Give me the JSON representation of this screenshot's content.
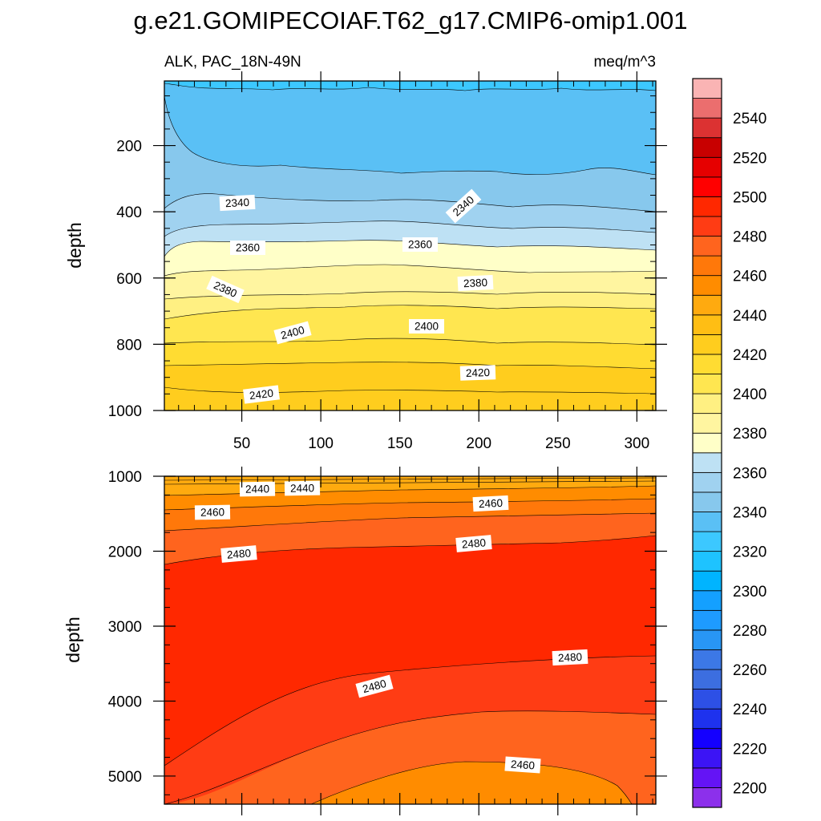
{
  "chart_data": {
    "type": "contour",
    "title": "g.e21.GOMIPECOIAF.T62_g17.CMIP6-omip1.001",
    "variable_label": "ALK, PAC_18N-49N",
    "units": "meq/m^3",
    "colorbar": {
      "levels": [
        2200,
        2210,
        2220,
        2230,
        2240,
        2250,
        2260,
        2270,
        2280,
        2290,
        2300,
        2310,
        2320,
        2330,
        2340,
        2350,
        2360,
        2370,
        2380,
        2390,
        2400,
        2410,
        2420,
        2430,
        2440,
        2450,
        2460,
        2470,
        2480,
        2490,
        2500,
        2510,
        2520,
        2530,
        2540,
        2550
      ],
      "tick_labels": [
        "2200",
        "2220",
        "2240",
        "2260",
        "2280",
        "2300",
        "2320",
        "2340",
        "2360",
        "2380",
        "2400",
        "2420",
        "2440",
        "2460",
        "2480",
        "2500",
        "2520",
        "2540"
      ],
      "colors": [
        "#8c30eb",
        "#6414f5",
        "#3c14f5",
        "#1400ff",
        "#1e32ee",
        "#2d50e6",
        "#3c6ee0",
        "#3c78e6",
        "#2896f5",
        "#1e9bff",
        "#14a0ff",
        "#00b4ff",
        "#1ec3ff",
        "#3cc8ff",
        "#5ac0f5",
        "#87c8ed",
        "#a0d2f0",
        "#bee1f4",
        "#ffffc8",
        "#fff5a0",
        "#fff082",
        "#ffe650",
        "#ffdc32",
        "#ffcd1e",
        "#ffbe14",
        "#ffaa0f",
        "#ff8c00",
        "#ff780a",
        "#ff641e",
        "#ff3c14",
        "#ff2800",
        "#ff0000",
        "#e60000",
        "#c80000",
        "#dc3232",
        "#eb6e6e",
        "#fab4b4"
      ]
    },
    "panels": [
      {
        "name": "upper",
        "x_ticks": [
          50,
          100,
          150,
          200,
          250,
          300
        ],
        "xlim": [
          1,
          312
        ],
        "ylabel": "depth",
        "y_ticks": [
          200,
          400,
          600,
          800,
          1000
        ],
        "ylim": [
          1000,
          5
        ],
        "contour_labels": [
          "2340",
          "2340",
          "2360",
          "2360",
          "2380",
          "2380",
          "2400",
          "2400",
          "2420",
          "2420"
        ]
      },
      {
        "name": "lower",
        "x_ticks": [
          50,
          100,
          150,
          200,
          250,
          300
        ],
        "xlim": [
          1,
          312
        ],
        "ylabel": "depth",
        "y_ticks": [
          1000,
          2000,
          3000,
          4000,
          5000
        ],
        "ylim": [
          5375,
          1000
        ],
        "contour_labels": [
          "2440",
          "2440",
          "2460",
          "2460",
          "2480",
          "2480",
          "2480",
          "2480",
          "2460"
        ]
      }
    ]
  }
}
